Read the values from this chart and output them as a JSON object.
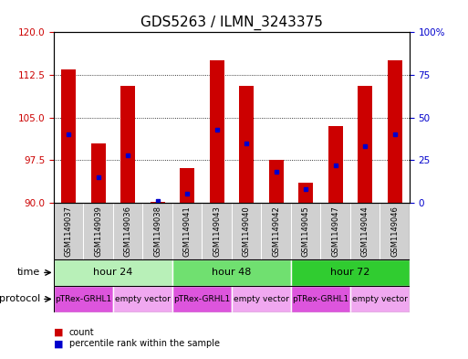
{
  "title": "GDS5263 / ILMN_3243375",
  "samples": [
    "GSM1149037",
    "GSM1149039",
    "GSM1149036",
    "GSM1149038",
    "GSM1149041",
    "GSM1149043",
    "GSM1149040",
    "GSM1149042",
    "GSM1149045",
    "GSM1149047",
    "GSM1149044",
    "GSM1149046"
  ],
  "counts": [
    113.5,
    100.5,
    110.5,
    90.1,
    96.0,
    115.0,
    110.5,
    97.5,
    93.5,
    103.5,
    110.5,
    115.0
  ],
  "percentile_ranks": [
    40,
    15,
    28,
    1,
    5,
    43,
    35,
    18,
    8,
    22,
    33,
    40
  ],
  "ylim_left": [
    90,
    120
  ],
  "ylim_right": [
    0,
    100
  ],
  "yticks_left": [
    90,
    97.5,
    105,
    112.5,
    120
  ],
  "yticks_right": [
    0,
    25,
    50,
    75,
    100
  ],
  "bar_color": "#cc0000",
  "marker_color": "#0000cc",
  "bar_width": 0.5,
  "time_groups": [
    {
      "label": "hour 24",
      "cols": [
        0,
        1,
        2,
        3
      ],
      "color": "#b8f0b8"
    },
    {
      "label": "hour 48",
      "cols": [
        4,
        5,
        6,
        7
      ],
      "color": "#70e070"
    },
    {
      "label": "hour 72",
      "cols": [
        8,
        9,
        10,
        11
      ],
      "color": "#30cc30"
    }
  ],
  "protocol_groups": [
    {
      "label": "pTRex-GRHL1",
      "cols": [
        0,
        1
      ],
      "color": "#dd55dd"
    },
    {
      "label": "empty vector",
      "cols": [
        2,
        3
      ],
      "color": "#f0a8f0"
    },
    {
      "label": "pTRex-GRHL1",
      "cols": [
        4,
        5
      ],
      "color": "#dd55dd"
    },
    {
      "label": "empty vector",
      "cols": [
        6,
        7
      ],
      "color": "#f0a8f0"
    },
    {
      "label": "pTRex-GRHL1",
      "cols": [
        8,
        9
      ],
      "color": "#dd55dd"
    },
    {
      "label": "empty vector",
      "cols": [
        10,
        11
      ],
      "color": "#f0a8f0"
    }
  ],
  "bg_color": "#ffffff",
  "plot_bg": "#ffffff",
  "label_color_left": "#cc0000",
  "label_color_right": "#0000cc",
  "title_fontsize": 11,
  "tick_fontsize": 7.5,
  "sample_label_fontsize": 6,
  "legend_fontsize": 7,
  "time_label_fontsize": 8,
  "protocol_label_fontsize": 6.5
}
